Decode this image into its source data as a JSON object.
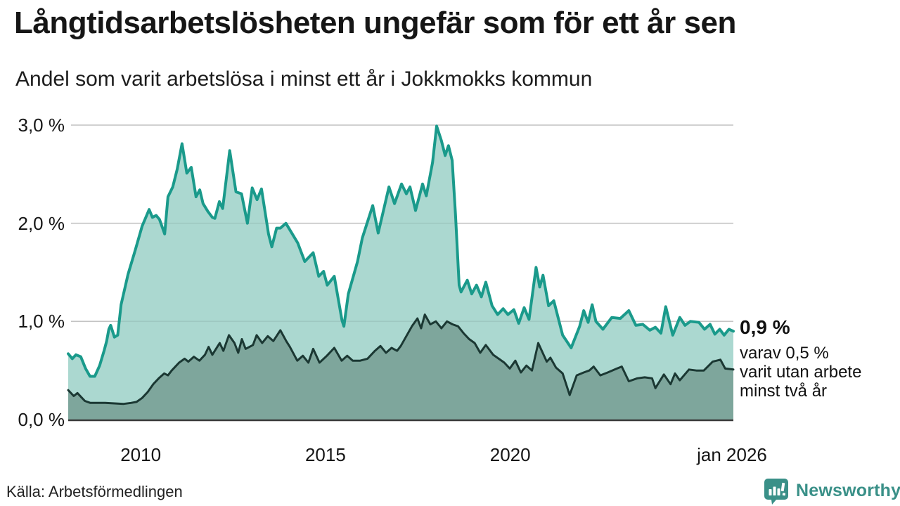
{
  "title": "Långtidsarbetslösheten ungefär som för ett år sen",
  "subtitle": "Andel som varit arbetslösa i minst ett år i Jokkmokks kommun",
  "annotation": {
    "headline": "0,9 %",
    "line1": "varav 0,5 %",
    "line2": "varit utan arbete",
    "line3": "minst två år"
  },
  "source": "Källa: Arbetsförmedlingen",
  "logo": {
    "text": "Newsworthy",
    "color": "#3a9088"
  },
  "colors": {
    "series1_line": "#1a9a8b",
    "series1_fill": "#abd8d0",
    "series2_line": "#1b3833",
    "series2_fill": "#7ea69c",
    "gridline": "#d2d2d2",
    "baseline": "#3a3a3a",
    "text": "#161616"
  },
  "chart_data": {
    "type": "area",
    "title": "Andel som varit arbetslösa i minst ett år i Jokkmokks kommun",
    "xlabel": "",
    "ylabel": "",
    "grid": true,
    "legend_position": "none",
    "x_axis": {
      "range": [
        2008.0,
        2026.0
      ],
      "ticks": [
        "2010",
        "2015",
        "2020",
        "jan 2026"
      ],
      "tick_positions": [
        2010,
        2015,
        2020,
        2026
      ]
    },
    "y_axis": {
      "range": [
        0,
        3.1
      ],
      "ticks": [
        "3,0 %",
        "2,0 %",
        "1,0 %",
        "0,0 %"
      ],
      "tick_values": [
        3,
        2,
        1,
        0
      ]
    },
    "series": [
      {
        "name": "Andel arbetslösa minst ett år",
        "end_label": "0,9 %",
        "color": "#1a9a8b",
        "fill": "#abd8d0",
        "points": [
          [
            2008.0,
            0.67
          ],
          [
            2008.11,
            0.62
          ],
          [
            2008.21,
            0.66
          ],
          [
            2008.34,
            0.64
          ],
          [
            2008.47,
            0.52
          ],
          [
            2008.59,
            0.44
          ],
          [
            2008.72,
            0.44
          ],
          [
            2008.85,
            0.55
          ],
          [
            2008.97,
            0.7
          ],
          [
            2009.04,
            0.8
          ],
          [
            2009.1,
            0.92
          ],
          [
            2009.15,
            0.96
          ],
          [
            2009.25,
            0.84
          ],
          [
            2009.34,
            0.86
          ],
          [
            2009.43,
            1.17
          ],
          [
            2009.62,
            1.48
          ],
          [
            2009.81,
            1.72
          ],
          [
            2010.0,
            1.97
          ],
          [
            2010.19,
            2.14
          ],
          [
            2010.28,
            2.06
          ],
          [
            2010.38,
            2.08
          ],
          [
            2010.47,
            2.04
          ],
          [
            2010.61,
            1.89
          ],
          [
            2010.7,
            2.27
          ],
          [
            2010.83,
            2.37
          ],
          [
            2010.95,
            2.55
          ],
          [
            2011.08,
            2.81
          ],
          [
            2011.21,
            2.51
          ],
          [
            2011.33,
            2.57
          ],
          [
            2011.46,
            2.27
          ],
          [
            2011.56,
            2.34
          ],
          [
            2011.65,
            2.2
          ],
          [
            2011.78,
            2.12
          ],
          [
            2011.9,
            2.06
          ],
          [
            2011.97,
            2.05
          ],
          [
            2012.09,
            2.22
          ],
          [
            2012.18,
            2.15
          ],
          [
            2012.37,
            2.74
          ],
          [
            2012.54,
            2.32
          ],
          [
            2012.69,
            2.3
          ],
          [
            2012.85,
            2.0
          ],
          [
            2012.98,
            2.36
          ],
          [
            2013.11,
            2.24
          ],
          [
            2013.23,
            2.35
          ],
          [
            2013.42,
            1.89
          ],
          [
            2013.51,
            1.76
          ],
          [
            2013.64,
            1.95
          ],
          [
            2013.74,
            1.95
          ],
          [
            2013.89,
            2.0
          ],
          [
            2014.21,
            1.8
          ],
          [
            2014.4,
            1.61
          ],
          [
            2014.63,
            1.7
          ],
          [
            2014.78,
            1.46
          ],
          [
            2014.91,
            1.51
          ],
          [
            2015.01,
            1.37
          ],
          [
            2015.2,
            1.46
          ],
          [
            2015.41,
            1.01
          ],
          [
            2015.46,
            0.95
          ],
          [
            2015.58,
            1.28
          ],
          [
            2015.83,
            1.61
          ],
          [
            2015.96,
            1.85
          ],
          [
            2016.24,
            2.18
          ],
          [
            2016.39,
            1.9
          ],
          [
            2016.68,
            2.37
          ],
          [
            2016.83,
            2.2
          ],
          [
            2017.02,
            2.4
          ],
          [
            2017.15,
            2.3
          ],
          [
            2017.25,
            2.37
          ],
          [
            2017.4,
            2.13
          ],
          [
            2017.59,
            2.4
          ],
          [
            2017.69,
            2.28
          ],
          [
            2017.86,
            2.62
          ],
          [
            2017.97,
            2.99
          ],
          [
            2018.1,
            2.84
          ],
          [
            2018.2,
            2.69
          ],
          [
            2018.29,
            2.79
          ],
          [
            2018.39,
            2.64
          ],
          [
            2018.48,
            2.09
          ],
          [
            2018.58,
            1.37
          ],
          [
            2018.63,
            1.3
          ],
          [
            2018.8,
            1.42
          ],
          [
            2018.92,
            1.28
          ],
          [
            2019.05,
            1.37
          ],
          [
            2019.18,
            1.25
          ],
          [
            2019.3,
            1.4
          ],
          [
            2019.47,
            1.16
          ],
          [
            2019.62,
            1.07
          ],
          [
            2019.77,
            1.13
          ],
          [
            2019.9,
            1.07
          ],
          [
            2020.06,
            1.12
          ],
          [
            2020.19,
            0.98
          ],
          [
            2020.34,
            1.14
          ],
          [
            2020.47,
            1.02
          ],
          [
            2020.66,
            1.55
          ],
          [
            2020.76,
            1.35
          ],
          [
            2020.85,
            1.47
          ],
          [
            2021.0,
            1.16
          ],
          [
            2021.14,
            1.21
          ],
          [
            2021.38,
            0.86
          ],
          [
            2021.61,
            0.73
          ],
          [
            2021.84,
            0.95
          ],
          [
            2021.95,
            1.11
          ],
          [
            2022.07,
            0.99
          ],
          [
            2022.18,
            1.17
          ],
          [
            2022.28,
            1.0
          ],
          [
            2022.47,
            0.92
          ],
          [
            2022.71,
            1.04
          ],
          [
            2022.94,
            1.03
          ],
          [
            2023.17,
            1.11
          ],
          [
            2023.36,
            0.96
          ],
          [
            2023.55,
            0.97
          ],
          [
            2023.74,
            0.91
          ],
          [
            2023.89,
            0.94
          ],
          [
            2024.04,
            0.88
          ],
          [
            2024.17,
            1.15
          ],
          [
            2024.36,
            0.86
          ],
          [
            2024.55,
            1.04
          ],
          [
            2024.69,
            0.96
          ],
          [
            2024.84,
            1.0
          ],
          [
            2025.07,
            0.99
          ],
          [
            2025.22,
            0.92
          ],
          [
            2025.37,
            0.97
          ],
          [
            2025.5,
            0.87
          ],
          [
            2025.63,
            0.92
          ],
          [
            2025.75,
            0.86
          ],
          [
            2025.88,
            0.92
          ],
          [
            2026.0,
            0.9
          ]
        ]
      },
      {
        "name": "varav utan arbete minst två år",
        "end_label": "0,5 %",
        "color": "#1b3833",
        "fill": "#7ea69c",
        "points": [
          [
            2008.0,
            0.3
          ],
          [
            2008.15,
            0.24
          ],
          [
            2008.25,
            0.27
          ],
          [
            2008.45,
            0.19
          ],
          [
            2008.6,
            0.17
          ],
          [
            2009.0,
            0.17
          ],
          [
            2009.5,
            0.16
          ],
          [
            2009.7,
            0.17
          ],
          [
            2009.85,
            0.18
          ],
          [
            2010.0,
            0.22
          ],
          [
            2010.15,
            0.28
          ],
          [
            2010.3,
            0.36
          ],
          [
            2010.45,
            0.42
          ],
          [
            2010.6,
            0.47
          ],
          [
            2010.7,
            0.45
          ],
          [
            2010.8,
            0.5
          ],
          [
            2011.0,
            0.58
          ],
          [
            2011.15,
            0.62
          ],
          [
            2011.25,
            0.59
          ],
          [
            2011.4,
            0.64
          ],
          [
            2011.55,
            0.6
          ],
          [
            2011.7,
            0.66
          ],
          [
            2011.8,
            0.74
          ],
          [
            2011.9,
            0.66
          ],
          [
            2012.0,
            0.72
          ],
          [
            2012.1,
            0.78
          ],
          [
            2012.2,
            0.7
          ],
          [
            2012.35,
            0.86
          ],
          [
            2012.5,
            0.78
          ],
          [
            2012.6,
            0.68
          ],
          [
            2012.7,
            0.82
          ],
          [
            2012.8,
            0.72
          ],
          [
            2013.0,
            0.76
          ],
          [
            2013.1,
            0.86
          ],
          [
            2013.25,
            0.78
          ],
          [
            2013.4,
            0.85
          ],
          [
            2013.55,
            0.8
          ],
          [
            2013.74,
            0.91
          ],
          [
            2013.9,
            0.8
          ],
          [
            2014.0,
            0.74
          ],
          [
            2014.2,
            0.6
          ],
          [
            2014.35,
            0.65
          ],
          [
            2014.5,
            0.58
          ],
          [
            2014.63,
            0.72
          ],
          [
            2014.8,
            0.58
          ],
          [
            2015.0,
            0.65
          ],
          [
            2015.2,
            0.73
          ],
          [
            2015.4,
            0.6
          ],
          [
            2015.55,
            0.65
          ],
          [
            2015.7,
            0.6
          ],
          [
            2015.9,
            0.6
          ],
          [
            2016.1,
            0.62
          ],
          [
            2016.3,
            0.7
          ],
          [
            2016.45,
            0.75
          ],
          [
            2016.6,
            0.68
          ],
          [
            2016.75,
            0.73
          ],
          [
            2016.9,
            0.7
          ],
          [
            2017.0,
            0.75
          ],
          [
            2017.15,
            0.85
          ],
          [
            2017.3,
            0.95
          ],
          [
            2017.45,
            1.03
          ],
          [
            2017.55,
            0.93
          ],
          [
            2017.65,
            1.07
          ],
          [
            2017.8,
            0.97
          ],
          [
            2017.95,
            1.0
          ],
          [
            2018.1,
            0.93
          ],
          [
            2018.25,
            1.0
          ],
          [
            2018.4,
            0.97
          ],
          [
            2018.55,
            0.95
          ],
          [
            2018.7,
            0.88
          ],
          [
            2018.85,
            0.82
          ],
          [
            2019.0,
            0.78
          ],
          [
            2019.15,
            0.68
          ],
          [
            2019.3,
            0.76
          ],
          [
            2019.5,
            0.66
          ],
          [
            2019.65,
            0.62
          ],
          [
            2019.8,
            0.58
          ],
          [
            2019.95,
            0.52
          ],
          [
            2020.1,
            0.6
          ],
          [
            2020.25,
            0.48
          ],
          [
            2020.4,
            0.55
          ],
          [
            2020.55,
            0.5
          ],
          [
            2020.72,
            0.78
          ],
          [
            2020.95,
            0.59
          ],
          [
            2021.05,
            0.63
          ],
          [
            2021.2,
            0.53
          ],
          [
            2021.38,
            0.47
          ],
          [
            2021.57,
            0.25
          ],
          [
            2021.76,
            0.45
          ],
          [
            2021.95,
            0.48
          ],
          [
            2022.1,
            0.5
          ],
          [
            2022.22,
            0.54
          ],
          [
            2022.4,
            0.45
          ],
          [
            2022.6,
            0.48
          ],
          [
            2022.85,
            0.52
          ],
          [
            2022.98,
            0.54
          ],
          [
            2023.17,
            0.39
          ],
          [
            2023.4,
            0.42
          ],
          [
            2023.6,
            0.43
          ],
          [
            2023.8,
            0.42
          ],
          [
            2023.89,
            0.32
          ],
          [
            2024.12,
            0.46
          ],
          [
            2024.3,
            0.36
          ],
          [
            2024.42,
            0.47
          ],
          [
            2024.55,
            0.4
          ],
          [
            2024.8,
            0.51
          ],
          [
            2025.0,
            0.5
          ],
          [
            2025.2,
            0.5
          ],
          [
            2025.44,
            0.59
          ],
          [
            2025.65,
            0.61
          ],
          [
            2025.78,
            0.52
          ],
          [
            2026.0,
            0.51
          ]
        ]
      }
    ]
  }
}
